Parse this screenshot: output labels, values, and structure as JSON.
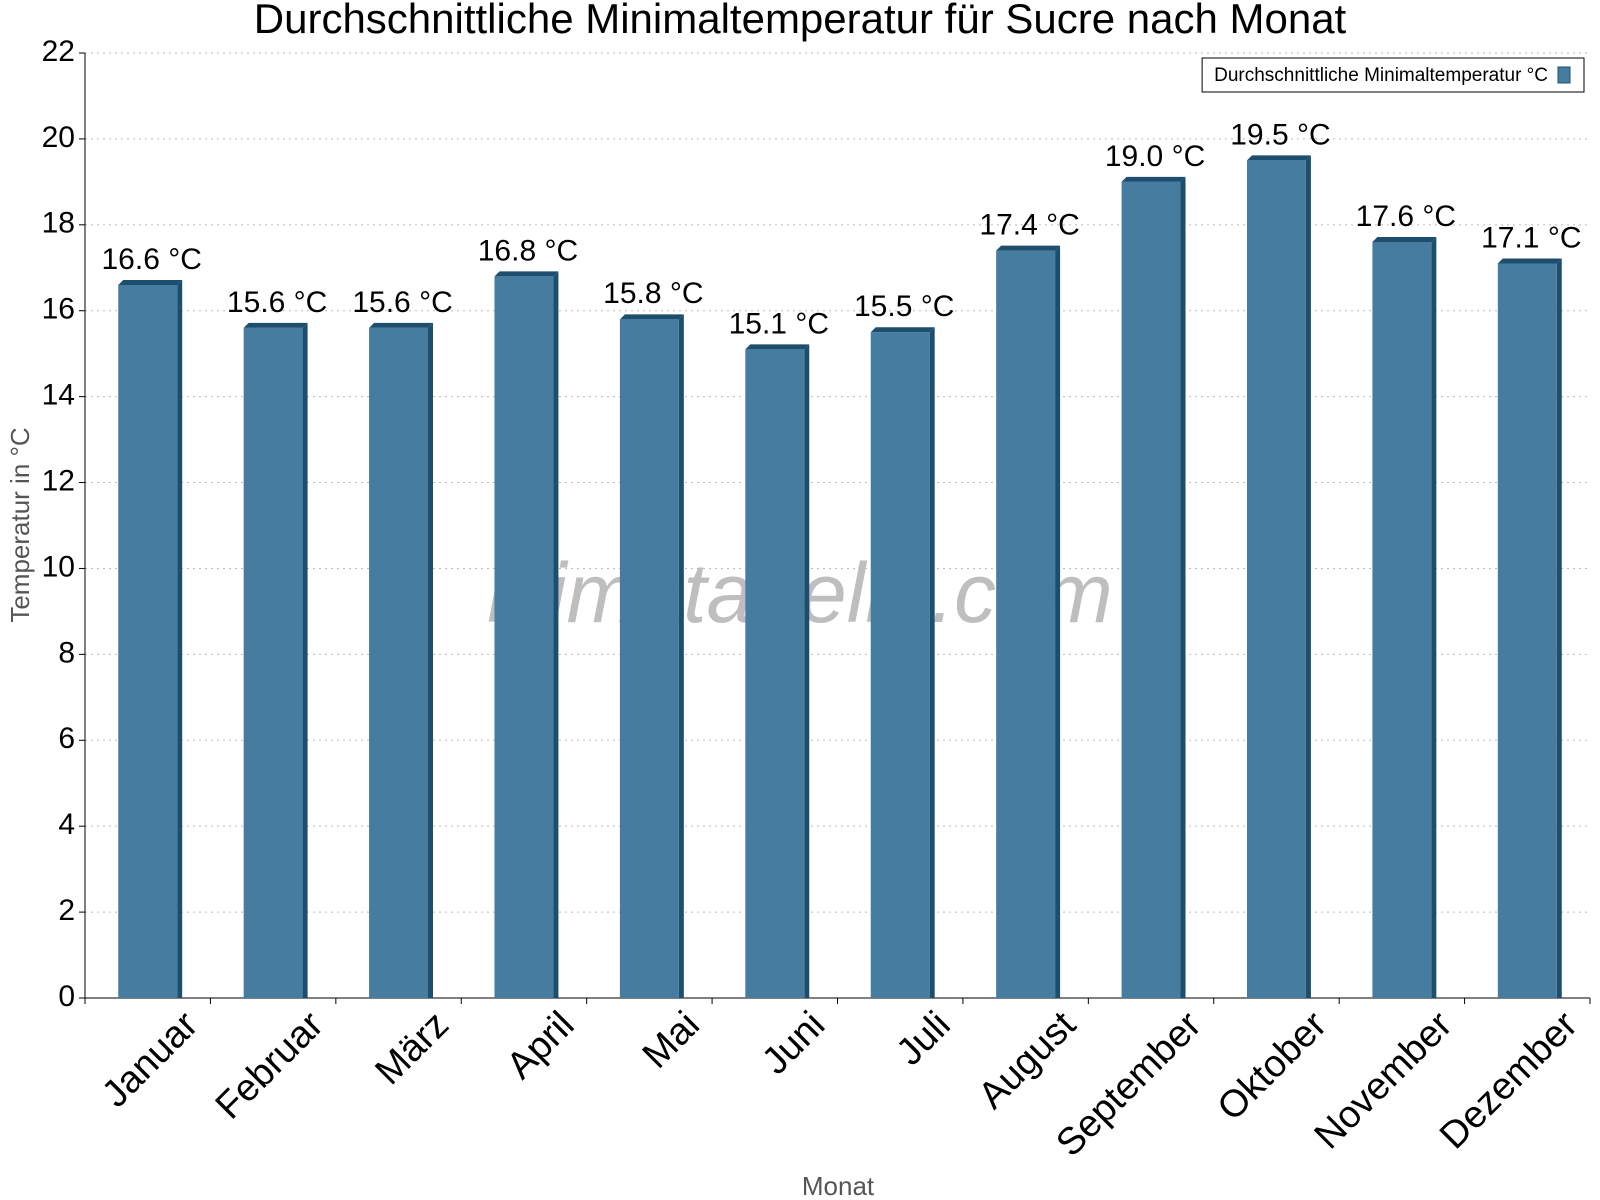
{
  "chart_data": {
    "type": "bar",
    "title": "Durchschnittliche Minimaltemperatur für Sucre nach Monat",
    "x_label": "Monat",
    "y_label": "Temperatur in °C",
    "watermark": "klimatabelle.com",
    "categories": [
      "Januar",
      "Februar",
      "März",
      "April",
      "Mai",
      "Juni",
      "Juli",
      "August",
      "September",
      "Oktober",
      "November",
      "Dezember"
    ],
    "series": [
      {
        "name": "Durchschnittliche Minimaltemperatur °C",
        "color": "#467c9f",
        "values": [
          16.6,
          15.6,
          15.6,
          16.8,
          15.8,
          15.1,
          15.5,
          17.4,
          19.0,
          19.5,
          17.6,
          17.1
        ],
        "value_labels": [
          "16.6 °C",
          "15.6 °C",
          "15.6 °C",
          "16.8 °C",
          "15.8 °C",
          "15.1 °C",
          "15.5 °C",
          "17.4 °C",
          "19.0 °C",
          "19.5 °C",
          "17.6 °C",
          "17.1 °C"
        ]
      }
    ],
    "ylim": [
      0,
      22
    ],
    "yticks": [
      0,
      2,
      4,
      6,
      8,
      10,
      12,
      14,
      16,
      18,
      20,
      22
    ],
    "grid": true,
    "legend": "top-right"
  }
}
